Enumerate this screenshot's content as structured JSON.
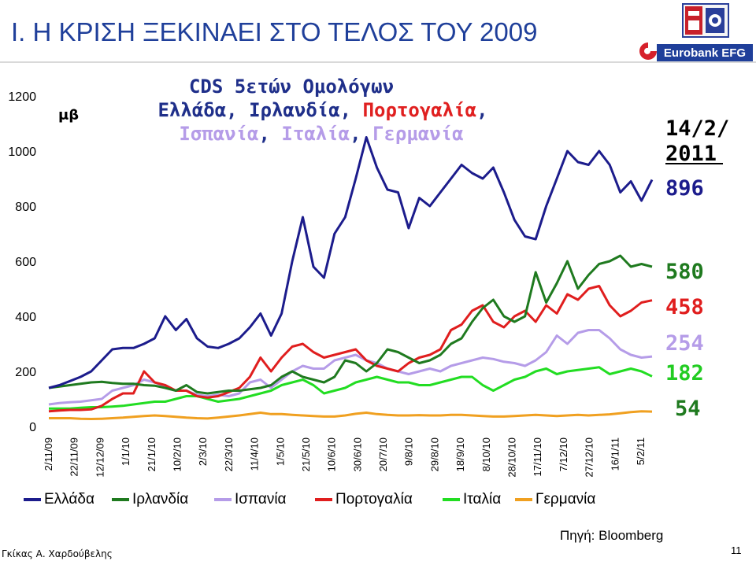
{
  "slide": {
    "title": "Ι.  Η ΚΡΙΣΗ ΞΕΚΙΝΑΕΙ ΣΤΟ ΤΕΛΟΣ ΤΟΥ 2009",
    "source": "Πηγή: Bloomberg",
    "author": "Γκίκας Α. Χαρδούβελης",
    "page_number": "11",
    "logo_text": "Eurobank EFG"
  },
  "chart_data": {
    "type": "line",
    "title_line1": "CDS 5ετών Ομολόγων",
    "title_line2_parts": [
      {
        "text": "Ελλάδα",
        "color": "#1f2f8a"
      },
      {
        "text": ", ",
        "color": "#1f2f8a"
      },
      {
        "text": "Ιρλανδία",
        "color": "#1f2f8a"
      },
      {
        "text": ", ",
        "color": "#1f2f8a"
      },
      {
        "text": "Πορτογαλία",
        "color": "#e02020"
      },
      {
        "text": ",",
        "color": "#1f2f8a"
      }
    ],
    "title_line3_parts": [
      {
        "text": "Ισπανία",
        "color": "#b59ce8"
      },
      {
        "text": ", ",
        "color": "#1f2f8a"
      },
      {
        "text": "Ιταλία",
        "color": "#b59ce8"
      },
      {
        "text": ", ",
        "color": "#1f2f8a"
      },
      {
        "text": "Γερμανία",
        "color": "#b59ce8"
      }
    ],
    "ylabel": "μβ",
    "ylim": [
      0,
      1200
    ],
    "yticks": [
      0,
      200,
      400,
      600,
      800,
      1000,
      1200
    ],
    "x_tick_labels": [
      "2/11/09",
      "22/11/09",
      "12/12/09",
      "1/1/10",
      "21/1/10",
      "10/2/10",
      "2/3/10",
      "22/3/10",
      "11/4/10",
      "1/5/10",
      "21/5/10",
      "10/6/10",
      "30/6/10",
      "20/7/10",
      "9/8/10",
      "29/8/10",
      "18/9/10",
      "8/10/10",
      "28/10/10",
      "17/11/10",
      "7/12/10",
      "27/12/10",
      "16/1/11",
      "5/2/11"
    ],
    "end_date_label": "14/2/\n2011",
    "end_date_line1": "14/2/",
    "end_date_line2": "2011",
    "grid": false,
    "legend_position": "bottom",
    "series": [
      {
        "name": "Ελλάδα",
        "color": "#1c1c8c",
        "end_label": "896",
        "values": [
          140,
          150,
          165,
          180,
          200,
          240,
          280,
          285,
          285,
          300,
          320,
          400,
          350,
          390,
          320,
          290,
          285,
          300,
          320,
          360,
          410,
          330,
          410,
          600,
          760,
          580,
          540,
          700,
          760,
          900,
          1050,
          940,
          860,
          850,
          720,
          830,
          800,
          850,
          900,
          950,
          920,
          900,
          940,
          850,
          750,
          690,
          680,
          800,
          900,
          1000,
          960,
          950,
          1000,
          950,
          850,
          890,
          820,
          896
        ]
      },
      {
        "name": "Ιρλανδία",
        "color": "#1f7a1f",
        "end_label": "580",
        "values": [
          140,
          145,
          150,
          155,
          160,
          162,
          158,
          155,
          155,
          150,
          148,
          140,
          130,
          150,
          125,
          120,
          125,
          130,
          130,
          135,
          140,
          150,
          180,
          200,
          180,
          170,
          160,
          180,
          240,
          230,
          200,
          230,
          280,
          270,
          250,
          230,
          240,
          260,
          300,
          320,
          380,
          430,
          460,
          400,
          380,
          400,
          560,
          450,
          520,
          600,
          500,
          550,
          590,
          600,
          620,
          580,
          590,
          580
        ]
      },
      {
        "name": "Ισπανία",
        "color": "#b59ce8",
        "end_label": "254",
        "values": [
          80,
          85,
          88,
          90,
          95,
          100,
          130,
          140,
          150,
          170,
          160,
          145,
          130,
          130,
          115,
          110,
          115,
          110,
          120,
          160,
          170,
          140,
          170,
          200,
          220,
          210,
          210,
          240,
          250,
          260,
          240,
          230,
          210,
          200,
          190,
          200,
          210,
          200,
          220,
          230,
          240,
          250,
          245,
          235,
          230,
          220,
          240,
          270,
          330,
          300,
          340,
          350,
          350,
          320,
          280,
          260,
          250,
          254
        ]
      },
      {
        "name": "Πορτογαλία",
        "color": "#e01e1e",
        "end_label": "458",
        "values": [
          55,
          58,
          60,
          60,
          62,
          75,
          100,
          120,
          120,
          200,
          160,
          150,
          130,
          130,
          110,
          105,
          110,
          125,
          140,
          180,
          250,
          200,
          250,
          290,
          300,
          270,
          250,
          260,
          270,
          280,
          240,
          220,
          210,
          200,
          230,
          250,
          260,
          280,
          350,
          370,
          420,
          440,
          380,
          360,
          400,
          420,
          380,
          440,
          410,
          480,
          460,
          500,
          510,
          440,
          400,
          420,
          450,
          458
        ]
      },
      {
        "name": "Ιταλία",
        "color": "#22dd22",
        "end_label": "182",
        "values": [
          65,
          65,
          65,
          68,
          70,
          70,
          72,
          75,
          80,
          85,
          90,
          90,
          100,
          110,
          110,
          100,
          90,
          95,
          100,
          110,
          120,
          130,
          150,
          160,
          170,
          150,
          120,
          130,
          140,
          160,
          170,
          180,
          170,
          160,
          160,
          150,
          150,
          160,
          170,
          180,
          180,
          150,
          130,
          150,
          170,
          180,
          200,
          210,
          190,
          200,
          205,
          210,
          215,
          190,
          200,
          210,
          200,
          182
        ]
      },
      {
        "name": "Γερμανία",
        "color": "#f0a020",
        "end_label": "54",
        "values": [
          30,
          30,
          30,
          28,
          27,
          28,
          30,
          32,
          35,
          38,
          40,
          38,
          35,
          32,
          30,
          29,
          32,
          36,
          40,
          45,
          50,
          45,
          45,
          42,
          40,
          38,
          36,
          36,
          40,
          46,
          50,
          45,
          42,
          40,
          40,
          41,
          40,
          40,
          42,
          42,
          40,
          38,
          36,
          36,
          38,
          40,
          42,
          40,
          38,
          40,
          42,
          40,
          42,
          44,
          48,
          52,
          55,
          54
        ]
      }
    ]
  }
}
